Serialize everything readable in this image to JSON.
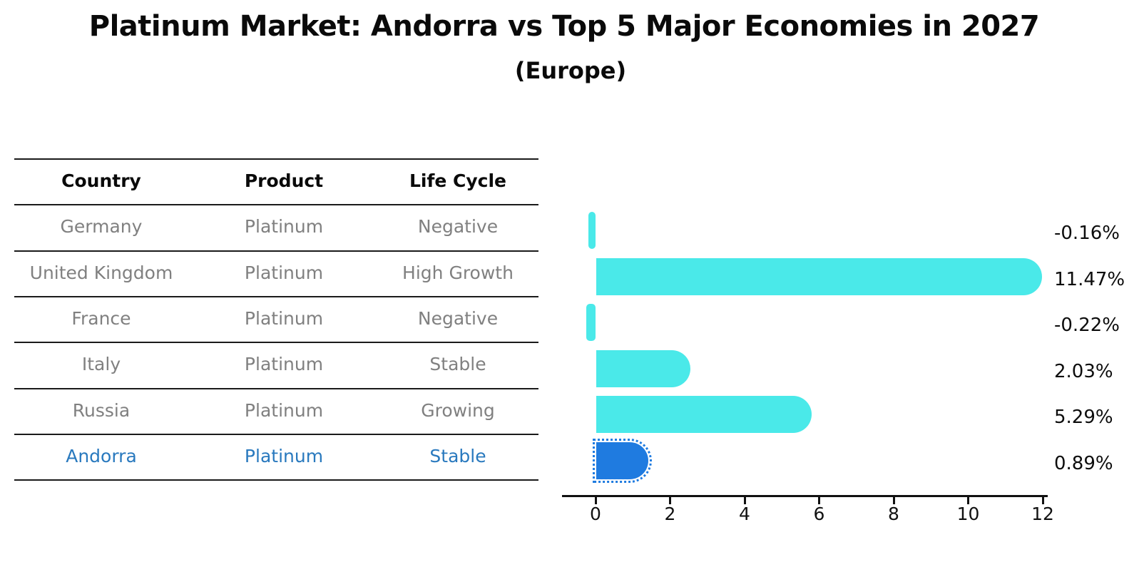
{
  "title": "Platinum Market: Andorra vs Top 5 Major Economies in 2027",
  "subtitle": "(Europe)",
  "table": {
    "headers": [
      "Country",
      "Product",
      "Life Cycle"
    ],
    "rows": [
      {
        "country": "Germany",
        "product": "Platinum",
        "life_cycle": "Negative",
        "highlight": false
      },
      {
        "country": "United Kingdom",
        "product": "Platinum",
        "life_cycle": "High Growth",
        "highlight": false
      },
      {
        "country": "France",
        "product": "Platinum",
        "life_cycle": "Negative",
        "highlight": false
      },
      {
        "country": "Italy",
        "product": "Platinum",
        "life_cycle": "Stable",
        "highlight": false
      },
      {
        "country": "Russia",
        "product": "Platinum",
        "life_cycle": "Growing",
        "highlight": false
      },
      {
        "country": "Andorra",
        "product": "Platinum",
        "life_cycle": "Stable",
        "highlight": true
      }
    ]
  },
  "chart_data": {
    "type": "bar",
    "orientation": "horizontal",
    "title": "Platinum Market: Andorra vs Top 5 Major Economies in 2027",
    "subtitle": "(Europe)",
    "categories": [
      "Germany",
      "United Kingdom",
      "France",
      "Italy",
      "Russia",
      "Andorra"
    ],
    "values": [
      -0.16,
      11.47,
      -0.22,
      2.03,
      5.29,
      0.89
    ],
    "value_labels": [
      "-0.16%",
      "11.47%",
      "-0.22%",
      "2.03%",
      "5.29%",
      "0.89%"
    ],
    "x_ticks": [
      "0",
      "2",
      "4",
      "6",
      "8",
      "10",
      "12"
    ],
    "xlim": [
      -0.9,
      12.1
    ],
    "grid": false,
    "legend": false,
    "highlight_index": 5,
    "colors": {
      "bar": "#4AE9E9",
      "highlight_bar": "#1F7BE0",
      "row_text": "#808080",
      "highlight_text": "#2979BE",
      "axis": "#111111",
      "value_label": "#0d0d0d"
    }
  }
}
